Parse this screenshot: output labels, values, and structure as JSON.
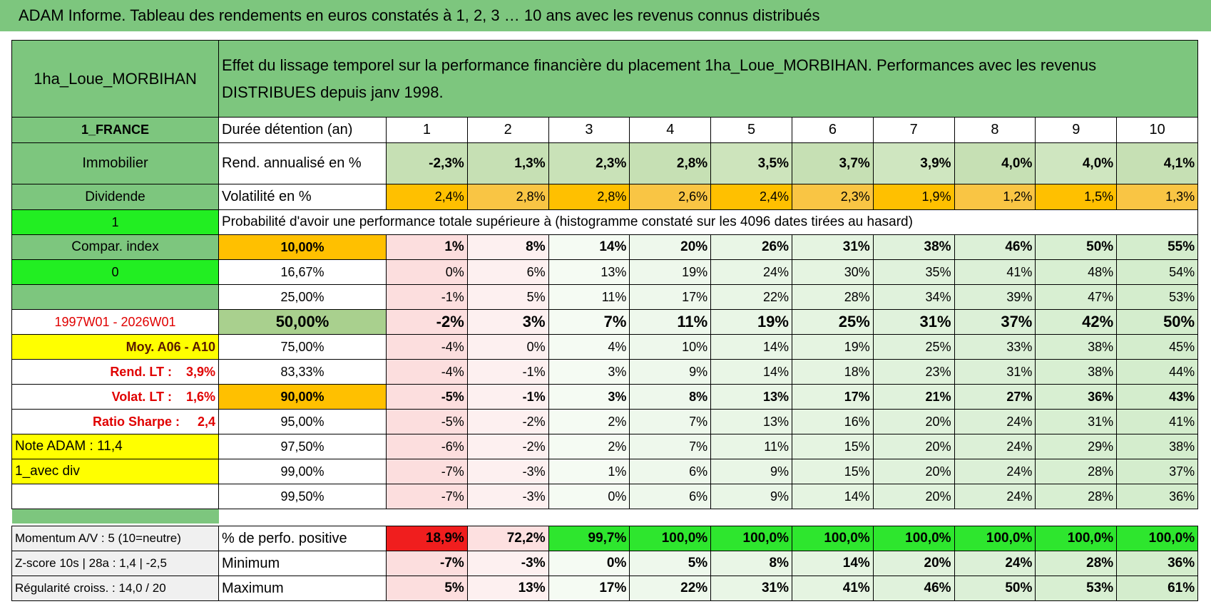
{
  "header": {
    "title": "ADAM Informe. Tableau des rendements en euros constatés à 1, 2, 3 … 10 ans avec les revenus connus distribués"
  },
  "table": {
    "name": "1ha_Loue_MORBIHAN",
    "description": "Effet du lissage temporel sur la performance financière du placement 1ha_Loue_MORBIHAN. Performances avec les revenus DISTRIBUES depuis janv 1998.",
    "rows": [
      {
        "side": "1_FRANCE",
        "label": "Durée détention (an)",
        "cells": [
          1,
          2,
          3,
          4,
          5,
          6,
          7,
          8,
          9,
          10
        ]
      },
      {
        "side": "Immobilier",
        "label": "Rend. annualisé en %",
        "cells": [
          "-2,3%",
          "1,3%",
          "2,3%",
          "2,8%",
          "3,5%",
          "3,7%",
          "3,9%",
          "4,0%",
          "4,0%",
          "4,1%"
        ]
      },
      {
        "side": "Dividende",
        "label": "Volatilité en %",
        "cells": [
          "2,4%",
          "2,8%",
          "2,8%",
          "2,6%",
          "2,4%",
          "2,3%",
          "1,9%",
          "1,2%",
          "1,5%",
          "1,3%"
        ]
      },
      {
        "side": "1",
        "note": "Probabilité d'avoir une performance totale supérieure à (histogramme constaté sur les 4096 dates tirées au hasard)"
      },
      {
        "side": "Compar. index",
        "label": "10,00%",
        "cells": [
          "1%",
          "8%",
          "14%",
          "20%",
          "26%",
          "31%",
          "38%",
          "46%",
          "50%",
          "55%"
        ]
      },
      {
        "side": "0",
        "label": "16,67%",
        "cells": [
          "0%",
          "6%",
          "13%",
          "19%",
          "24%",
          "30%",
          "35%",
          "41%",
          "48%",
          "54%"
        ]
      },
      {
        "label": "25,00%",
        "cells": [
          "-1%",
          "5%",
          "11%",
          "17%",
          "22%",
          "28%",
          "34%",
          "39%",
          "47%",
          "53%"
        ]
      },
      {
        "side": "1997W01 - 2026W01",
        "label": "50,00%",
        "cells": [
          "-2%",
          "3%",
          "7%",
          "11%",
          "19%",
          "25%",
          "31%",
          "37%",
          "42%",
          "50%"
        ]
      },
      {
        "side": "Moy. A06 - A10",
        "label": "75,00%",
        "cells": [
          "-4%",
          "0%",
          "4%",
          "10%",
          "14%",
          "19%",
          "25%",
          "33%",
          "38%",
          "45%"
        ]
      },
      {
        "side": "Rend. LT :    3,9%",
        "label": "83,33%",
        "cells": [
          "-4%",
          "-1%",
          "3%",
          "9%",
          "14%",
          "18%",
          "23%",
          "31%",
          "38%",
          "44%"
        ]
      },
      {
        "side": "Volat. LT :    1,6%",
        "label": "90,00%",
        "cells": [
          "-5%",
          "-1%",
          "3%",
          "8%",
          "13%",
          "17%",
          "21%",
          "27%",
          "36%",
          "43%"
        ]
      },
      {
        "side": "Ratio Sharpe :     2,4",
        "label": "95,00%",
        "cells": [
          "-5%",
          "-2%",
          "2%",
          "7%",
          "13%",
          "16%",
          "20%",
          "24%",
          "31%",
          "41%"
        ]
      },
      {
        "side": "Note ADAM : 11,4",
        "label": "97,50%",
        "cells": [
          "-6%",
          "-2%",
          "2%",
          "7%",
          "11%",
          "15%",
          "20%",
          "24%",
          "29%",
          "38%"
        ]
      },
      {
        "side": "1_avec div",
        "label": "99,00%",
        "cells": [
          "-7%",
          "-3%",
          "1%",
          "6%",
          "9%",
          "15%",
          "20%",
          "24%",
          "28%",
          "37%"
        ]
      },
      {
        "label": "99,50%",
        "cells": [
          "-7%",
          "-3%",
          "0%",
          "6%",
          "9%",
          "14%",
          "20%",
          "24%",
          "28%",
          "36%"
        ]
      }
    ],
    "footer": [
      {
        "side": "Momentum A/V : 5 (10=neutre)",
        "label": "% de perfo. positive",
        "cells": [
          "18,9%",
          "72,2%",
          "99,7%",
          "100,0%",
          "100,0%",
          "100,0%",
          "100,0%",
          "100,0%",
          "100,0%",
          "100,0%"
        ]
      },
      {
        "side": "Z-score 10s | 28a : 1,4 | -2,5",
        "label": "Minimum",
        "cells": [
          "-7%",
          "-3%",
          "0%",
          "5%",
          "8%",
          "14%",
          "20%",
          "24%",
          "28%",
          "36%"
        ]
      },
      {
        "side": "Régularité croiss. : 14,0 / 20",
        "label": "Maximum",
        "cells": [
          "5%",
          "13%",
          "17%",
          "22%",
          "31%",
          "41%",
          "46%",
          "50%",
          "53%",
          "61%"
        ]
      }
    ]
  }
}
